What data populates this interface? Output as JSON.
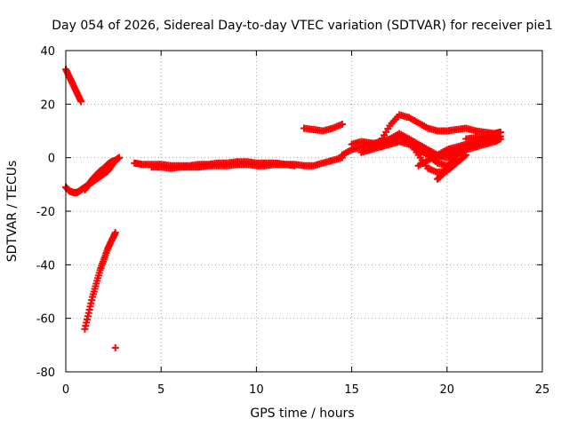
{
  "chart_data": {
    "type": "scatter",
    "title": "Day 054 of 2026, Sidereal Day-to-day VTEC variation (SDTVAR) for receiver pie1",
    "xlabel": "GPS time / hours",
    "ylabel": "SDTVAR / TECUs",
    "xlim": [
      0,
      25
    ],
    "ylim": [
      -80,
      40
    ],
    "xticks": [
      0,
      5,
      10,
      15,
      20,
      25
    ],
    "yticks": [
      -80,
      -60,
      -40,
      -20,
      0,
      20,
      40
    ],
    "xtick_labels": [
      "0",
      "5",
      "10",
      "15",
      "20",
      "25"
    ],
    "ytick_labels": [
      "-80",
      "-60",
      "-40",
      "-20",
      "0",
      "20",
      "40"
    ],
    "grid": true,
    "marker": "plus",
    "color": "#ff0000",
    "series": [
      {
        "name": "s1",
        "x": [
          0.0,
          0.2,
          0.4,
          0.6,
          0.8
        ],
        "y": [
          33,
          30,
          27,
          24,
          21
        ]
      },
      {
        "name": "s2",
        "x": [
          0.0,
          0.2,
          0.4,
          0.6,
          0.8,
          1.0,
          1.2,
          1.4,
          1.6,
          1.8,
          2.0,
          2.2,
          2.4,
          2.6,
          2.8
        ],
        "y": [
          -11,
          -12.5,
          -13,
          -13,
          -12,
          -11,
          -10,
          -9,
          -8,
          -7,
          -6,
          -5,
          -3,
          -1,
          0
        ]
      },
      {
        "name": "s3",
        "x": [
          1.0,
          1.2,
          1.4,
          1.6,
          1.8,
          2.0,
          2.2,
          2.4,
          2.6
        ],
        "y": [
          -12,
          -10,
          -8,
          -6.5,
          -5,
          -4,
          -2.5,
          -1.5,
          -1
        ]
      },
      {
        "name": "s4",
        "x": [
          1.0,
          1.2,
          1.4,
          1.6,
          1.8,
          2.0,
          2.2,
          2.4,
          2.6
        ],
        "y": [
          -64,
          -58,
          -52,
          -47,
          -42,
          -38,
          -34,
          -31,
          -28
        ]
      },
      {
        "name": "s5",
        "x": [
          2.6
        ],
        "y": [
          -71
        ]
      },
      {
        "name": "s6",
        "x": [
          3.6,
          4.0,
          4.5,
          5.0,
          5.5,
          6.0,
          6.5,
          7.0,
          7.5,
          8.0,
          8.5,
          9.0,
          9.5,
          10.0,
          10.5,
          11.0,
          11.5,
          12.0,
          12.5,
          13.0,
          13.5,
          14.0,
          14.5
        ],
        "y": [
          -2,
          -2.5,
          -2.5,
          -2.5,
          -3,
          -3,
          -3,
          -2.5,
          -2.5,
          -2,
          -2,
          -1.5,
          -1.5,
          -2,
          -2,
          -2,
          -2.5,
          -2.5,
          -3,
          -3,
          -2,
          -1,
          0
        ]
      },
      {
        "name": "s7",
        "x": [
          4.5,
          5.0,
          5.5,
          6.0,
          6.5,
          7.0,
          7.5,
          8.0,
          8.5,
          9.0,
          9.5,
          10.0,
          10.5,
          11.0,
          11.5,
          12.0
        ],
        "y": [
          -3.5,
          -3.5,
          -4,
          -3.5,
          -3.5,
          -3.5,
          -3,
          -3,
          -3,
          -2.5,
          -2.5,
          -3,
          -3,
          -2.5,
          -2.5,
          -3
        ]
      },
      {
        "name": "s8",
        "x": [
          12.5,
          13.0,
          13.5,
          14.0,
          14.5
        ],
        "y": [
          11,
          10.5,
          10,
          11,
          12.5
        ]
      },
      {
        "name": "s9",
        "x": [
          14.5,
          15.0,
          15.5,
          16.0,
          16.5,
          17.0,
          17.5,
          18.0,
          18.5,
          19.0,
          19.5,
          20.0,
          20.5,
          21.0,
          21.5,
          22.0,
          22.5,
          22.8
        ],
        "y": [
          1,
          3,
          4,
          5,
          6,
          7,
          8,
          7,
          5,
          3,
          1,
          0,
          1,
          3,
          4,
          5,
          6,
          7
        ]
      },
      {
        "name": "s10",
        "x": [
          15.0,
          15.5,
          16.0,
          16.5,
          17.0,
          17.5,
          18.0,
          18.5,
          19.0,
          19.5,
          20.0,
          20.5,
          21.0
        ],
        "y": [
          5,
          6,
          5.5,
          5,
          6,
          8,
          6,
          1,
          -4,
          -5.5,
          -5,
          -2,
          1
        ]
      },
      {
        "name": "s11",
        "x": [
          15.5,
          16.0,
          16.5,
          17.0,
          17.5,
          18.0,
          18.5,
          19.0,
          19.5,
          20.0,
          20.5,
          21.0,
          21.5,
          22.0,
          22.5,
          22.8
        ],
        "y": [
          2,
          3,
          4,
          5,
          6,
          5,
          3,
          1,
          0,
          1,
          3,
          4,
          5,
          6,
          7,
          8
        ]
      },
      {
        "name": "s12",
        "x": [
          16.0,
          16.5,
          17.0,
          17.5,
          18.0,
          18.5,
          19.0,
          19.5,
          20.0,
          20.5,
          21.0,
          21.5,
          22.0,
          22.5,
          22.8
        ],
        "y": [
          3,
          6,
          12,
          16,
          15,
          13,
          11,
          10,
          10,
          10.5,
          11,
          10,
          9.5,
          9,
          9.5
        ]
      },
      {
        "name": "s13",
        "x": [
          16.5,
          17.0,
          17.5,
          18.0,
          18.5,
          19.0,
          19.5,
          20.0,
          20.5
        ],
        "y": [
          4,
          7,
          9,
          7,
          4,
          1,
          -2,
          -3,
          -1
        ]
      },
      {
        "name": "s14",
        "x": [
          18.5,
          19.0,
          19.5,
          20.0,
          20.5,
          21.0,
          21.5,
          22.0,
          22.5,
          22.8
        ],
        "y": [
          -3,
          -1,
          1,
          3,
          4,
          5,
          6,
          7,
          8,
          8
        ]
      },
      {
        "name": "s15",
        "x": [
          19.5,
          19.8,
          20.0,
          20.2,
          20.4,
          20.6,
          20.8,
          21.0
        ],
        "y": [
          -8,
          -6,
          -4,
          -2,
          0,
          2,
          3,
          4
        ]
      },
      {
        "name": "s16",
        "x": [
          21.0,
          21.5,
          22.0,
          22.5,
          22.8
        ],
        "y": [
          7,
          7.5,
          8,
          9,
          9.5
        ]
      }
    ]
  }
}
